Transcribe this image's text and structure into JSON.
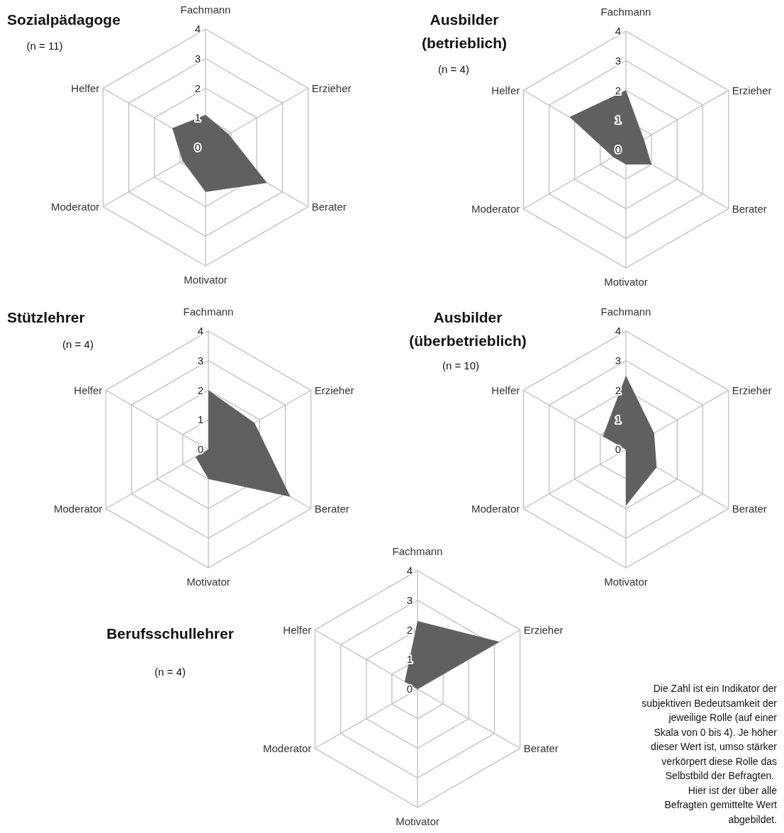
{
  "chart_data": [
    {
      "type": "radar",
      "title": "Sozialpädagoge",
      "subtitle": "(n = 11)",
      "categories": [
        "Fachmann",
        "Erzieher",
        "Berater",
        "Motivator",
        "Moderator",
        "Helfer"
      ],
      "ylim": [
        0,
        4
      ],
      "yticks": [
        0,
        1,
        2,
        3,
        4
      ],
      "grid": true,
      "series": [
        {
          "color": "#606060",
          "values": [
            1.1,
            0.9,
            2.4,
            1.5,
            0.9,
            1.3
          ]
        }
      ]
    },
    {
      "type": "radar",
      "title": "Ausbilder (betrieblich)",
      "subtitle": "(n = 4)",
      "categories": [
        "Fachmann",
        "Erzieher",
        "Berater",
        "Motivator",
        "Moderator",
        "Helfer"
      ],
      "ylim": [
        0,
        4
      ],
      "yticks": [
        0,
        1,
        2,
        3,
        4
      ],
      "grid": true,
      "series": [
        {
          "color": "#606060",
          "values": [
            2.0,
            0.7,
            1.0,
            0.5,
            0.5,
            2.2
          ]
        }
      ]
    },
    {
      "type": "radar",
      "title": "Stützlehrer",
      "subtitle": "(n = 4)",
      "categories": [
        "Fachmann",
        "Erzieher",
        "Berater",
        "Motivator",
        "Moderator",
        "Helfer"
      ],
      "ylim": [
        0,
        4
      ],
      "yticks": [
        0,
        1,
        2,
        3,
        4
      ],
      "grid": true,
      "series": [
        {
          "color": "#606060",
          "values": [
            2.0,
            1.8,
            3.2,
            1.0,
            0.5,
            0
          ]
        }
      ]
    },
    {
      "type": "radar",
      "title": "Ausbilder (überbetrieblich)",
      "subtitle": "(n = 10)",
      "categories": [
        "Fachmann",
        "Erzieher",
        "Berater",
        "Motivator",
        "Moderator",
        "Helfer"
      ],
      "ylim": [
        0,
        4
      ],
      "yticks": [
        0,
        1,
        2,
        3,
        4
      ],
      "grid": true,
      "series": [
        {
          "color": "#606060",
          "values": [
            2.5,
            1.1,
            1.2,
            1.9,
            0,
            0.9
          ]
        }
      ]
    },
    {
      "type": "radar",
      "title": "Berufsschullehrer",
      "subtitle": "(n = 4)",
      "categories": [
        "Fachmann",
        "Erzieher",
        "Berater",
        "Motivator",
        "Moderator",
        "Helfer"
      ],
      "ylim": [
        0,
        4
      ],
      "yticks": [
        0,
        1,
        2,
        3,
        4
      ],
      "grid": true,
      "series": [
        {
          "color": "#606060",
          "values": [
            2.3,
            3.2,
            0,
            0,
            0,
            0.5
          ]
        }
      ],
      "annotations": [
        "Die Zahl ist ein Indikator der subjektiven Bedeutsamkeit der jeweilige Rolle (auf einer Skala von 0 bis 4). Je höher dieser Wert ist, umso stärker verkörpert diese Rolle das Selbstbild der Befragten.  Hier ist der über alle Befragten gemittelte Wert abgebildet."
      ]
    }
  ]
}
